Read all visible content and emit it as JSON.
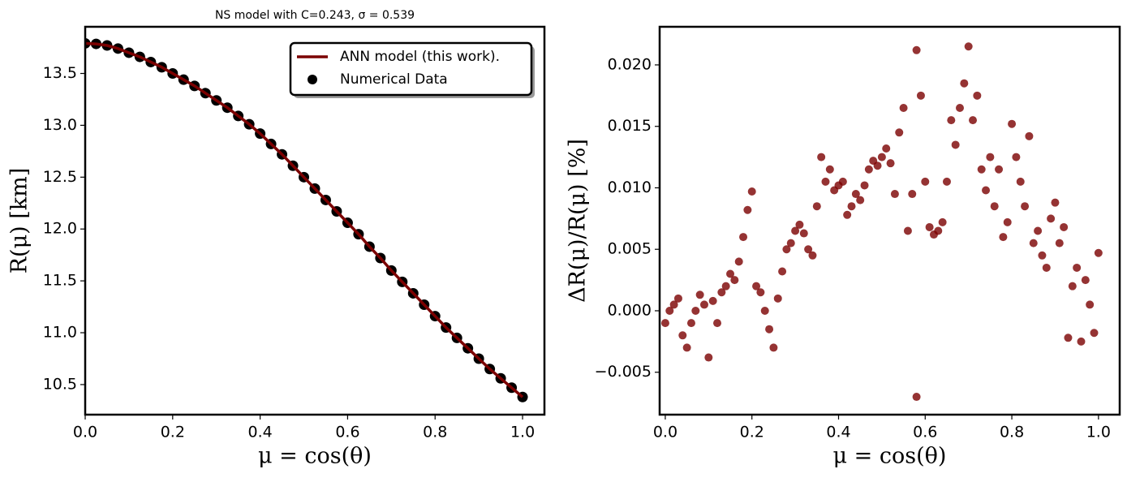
{
  "chart_data": [
    {
      "type": "line",
      "title": "NS model with C=0.243, σ = 0.539",
      "xlabel": "μ = cos(θ)",
      "ylabel": "R(μ) [km]",
      "x": [
        0,
        0.025,
        0.05,
        0.075,
        0.1,
        0.125,
        0.15,
        0.175,
        0.2,
        0.225,
        0.25,
        0.275,
        0.3,
        0.325,
        0.35,
        0.375,
        0.4,
        0.425,
        0.45,
        0.475,
        0.5,
        0.525,
        0.55,
        0.575,
        0.6,
        0.625,
        0.65,
        0.675,
        0.7,
        0.725,
        0.75,
        0.775,
        0.8,
        0.825,
        0.85,
        0.875,
        0.9,
        0.925,
        0.95,
        0.975,
        1.0
      ],
      "series": [
        {
          "name": "ANN model (this work).",
          "type": "line",
          "color": "#7b0000",
          "values": [
            13.79,
            13.785,
            13.77,
            13.74,
            13.7,
            13.66,
            13.61,
            13.56,
            13.5,
            13.44,
            13.38,
            13.31,
            13.24,
            13.17,
            13.09,
            13.01,
            12.92,
            12.82,
            12.72,
            12.61,
            12.5,
            12.39,
            12.28,
            12.17,
            12.06,
            11.95,
            11.83,
            11.72,
            11.6,
            11.49,
            11.38,
            11.27,
            11.16,
            11.05,
            10.95,
            10.85,
            10.75,
            10.65,
            10.56,
            10.47,
            10.38
          ]
        },
        {
          "name": "Numerical Data",
          "type": "scatter",
          "color": "#000000",
          "values": [
            13.79,
            13.785,
            13.77,
            13.74,
            13.7,
            13.66,
            13.61,
            13.56,
            13.5,
            13.44,
            13.38,
            13.31,
            13.24,
            13.17,
            13.09,
            13.01,
            12.92,
            12.82,
            12.72,
            12.61,
            12.5,
            12.39,
            12.28,
            12.17,
            12.06,
            11.95,
            11.83,
            11.72,
            11.6,
            11.49,
            11.38,
            11.27,
            11.16,
            11.05,
            10.95,
            10.85,
            10.75,
            10.65,
            10.56,
            10.47,
            10.38
          ]
        }
      ],
      "xlim": [
        0,
        1.05
      ],
      "ylim": [
        10.21,
        13.95
      ],
      "xticks": [
        {
          "value": 0,
          "label": "0.0"
        },
        0.2,
        0.4,
        0.6,
        0.8,
        {
          "value": 1,
          "label": "1.0"
        }
      ],
      "yticks": [
        10.5,
        {
          "value": 11,
          "label": "11.0"
        },
        11.5,
        {
          "value": 12,
          "label": "12.0"
        },
        12.5,
        {
          "value": 13,
          "label": "13.0"
        },
        13.5
      ],
      "legend": "upper right"
    },
    {
      "type": "scatter",
      "xlabel": "μ = cos(θ)",
      "ylabel": "ΔR(μ)/R(μ) [%]",
      "color": "#7b0000",
      "alpha": 0.8,
      "x": [
        0.0,
        0.01,
        0.02,
        0.03,
        0.04,
        0.05,
        0.06,
        0.07,
        0.08,
        0.09,
        0.1,
        0.11,
        0.12,
        0.13,
        0.14,
        0.15,
        0.16,
        0.17,
        0.18,
        0.19,
        0.2,
        0.21,
        0.22,
        0.23,
        0.24,
        0.25,
        0.26,
        0.27,
        0.28,
        0.29,
        0.3,
        0.31,
        0.32,
        0.33,
        0.34,
        0.35,
        0.36,
        0.37,
        0.38,
        0.39,
        0.4,
        0.41,
        0.42,
        0.43,
        0.44,
        0.45,
        0.46,
        0.47,
        0.48,
        0.49,
        0.5,
        0.51,
        0.52,
        0.53,
        0.54,
        0.55,
        0.56,
        0.57,
        0.58,
        0.58,
        0.59,
        0.6,
        0.61,
        0.62,
        0.63,
        0.64,
        0.65,
        0.66,
        0.67,
        0.68,
        0.69,
        0.7,
        0.71,
        0.72,
        0.73,
        0.74,
        0.75,
        0.76,
        0.77,
        0.78,
        0.79,
        0.8,
        0.81,
        0.82,
        0.83,
        0.84,
        0.85,
        0.86,
        0.87,
        0.88,
        0.89,
        0.9,
        0.91,
        0.92,
        0.93,
        0.94,
        0.95,
        0.96,
        0.97,
        0.98,
        0.99,
        1.0
      ],
      "values": [
        -0.001,
        0.0,
        0.0005,
        0.001,
        -0.002,
        -0.003,
        -0.001,
        0.0,
        0.0013,
        0.0005,
        -0.0038,
        0.0008,
        -0.001,
        0.0015,
        0.002,
        0.003,
        0.0025,
        0.004,
        0.006,
        0.0082,
        0.0097,
        0.002,
        0.0015,
        0.0,
        -0.0015,
        -0.003,
        0.001,
        0.0032,
        0.005,
        0.0055,
        0.0065,
        0.007,
        0.0063,
        0.005,
        0.0045,
        0.0085,
        0.0125,
        0.0105,
        0.0115,
        0.0098,
        0.0102,
        0.0105,
        0.0078,
        0.0085,
        0.0095,
        0.009,
        0.0102,
        0.0115,
        0.0122,
        0.0118,
        0.0125,
        0.0132,
        0.012,
        0.0095,
        0.0145,
        0.0165,
        0.0065,
        0.0095,
        0.0212,
        -0.007,
        0.0175,
        0.0105,
        0.0068,
        0.0062,
        0.0065,
        0.0072,
        0.0105,
        0.0155,
        0.0135,
        0.0165,
        0.0185,
        0.0215,
        0.0155,
        0.0175,
        0.0115,
        0.0098,
        0.0125,
        0.0085,
        0.0115,
        0.006,
        0.0072,
        0.0152,
        0.0125,
        0.0105,
        0.0085,
        0.0142,
        0.0055,
        0.0065,
        0.0045,
        0.0035,
        0.0075,
        0.0088,
        0.0055,
        0.0068,
        -0.0022,
        0.002,
        0.0035,
        -0.0025,
        0.0025,
        0.0005,
        -0.0018,
        0.0047
      ],
      "xlim": [
        -0.013,
        1.049
      ],
      "ylim": [
        -0.00845,
        0.0231
      ],
      "xticks": [
        {
          "value": 0,
          "label": "0.0"
        },
        0.2,
        0.4,
        0.6,
        0.8,
        {
          "value": 1,
          "label": "1.0"
        }
      ],
      "yticks": [
        {
          "value": -0.005,
          "label": "−0.005"
        },
        {
          "value": 0,
          "label": "0.000"
        },
        {
          "value": 0.005,
          "label": "0.005"
        },
        {
          "value": 0.01,
          "label": "0.010"
        },
        {
          "value": 0.015,
          "label": "0.015"
        },
        {
          "value": 0.02,
          "label": "0.020"
        }
      ]
    }
  ]
}
